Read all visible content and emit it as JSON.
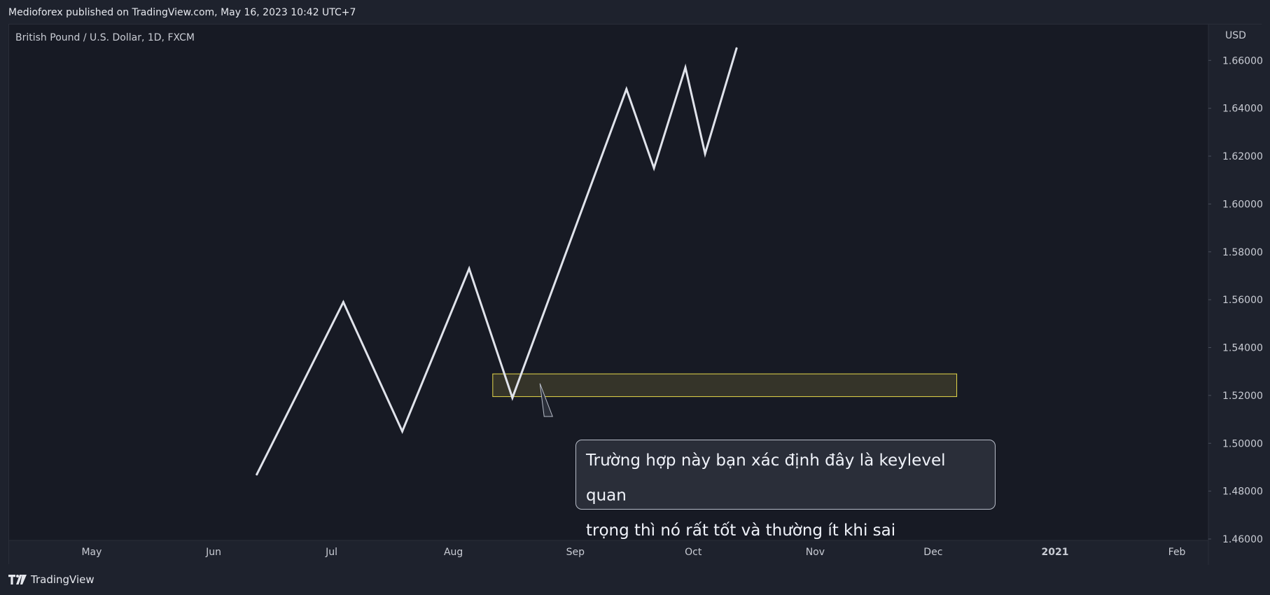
{
  "header": {
    "published_line": "Medioforex published on TradingView.com, May 16, 2023 10:42 UTC+7"
  },
  "footer": {
    "brand": "TradingView"
  },
  "chart_data": {
    "type": "line",
    "symbol_label": "British Pound / U.S. Dollar, 1D, FXCM",
    "currency_label": "USD",
    "y_ticks": [
      "1.66000",
      "1.64000",
      "1.62000",
      "1.60000",
      "1.58000",
      "1.56000",
      "1.54000",
      "1.52000",
      "1.50000",
      "1.48000",
      "1.46000"
    ],
    "ylim": [
      1.46,
      1.675
    ],
    "x_ticks": [
      {
        "label": "May",
        "date": "2020-05-01"
      },
      {
        "label": "Jun",
        "date": "2020-06-01"
      },
      {
        "label": "Jul",
        "date": "2020-07-01"
      },
      {
        "label": "Aug",
        "date": "2020-08-01"
      },
      {
        "label": "Sep",
        "date": "2020-09-01"
      },
      {
        "label": "Oct",
        "date": "2020-10-01"
      },
      {
        "label": "Nov",
        "date": "2020-11-01"
      },
      {
        "label": "Dec",
        "date": "2020-12-01"
      },
      {
        "label": "2021",
        "date": "2021-01-01",
        "bold": true
      },
      {
        "label": "Feb",
        "date": "2021-02-01"
      }
    ],
    "xlim": [
      "2020-04-10",
      "2021-02-09"
    ],
    "series": [
      {
        "color": "#e0e3eb",
        "points": [
          {
            "x": "2020-06-12",
            "y": 1.487
          },
          {
            "x": "2020-07-04",
            "y": 1.559
          },
          {
            "x": "2020-07-19",
            "y": 1.505
          },
          {
            "x": "2020-08-05",
            "y": 1.573
          },
          {
            "x": "2020-08-16",
            "y": 1.519
          },
          {
            "x": "2020-09-14",
            "y": 1.648
          },
          {
            "x": "2020-09-21",
            "y": 1.615
          },
          {
            "x": "2020-09-29",
            "y": 1.657
          },
          {
            "x": "2020-10-04",
            "y": 1.621
          },
          {
            "x": "2020-10-12",
            "y": 1.665
          }
        ]
      }
    ],
    "zone": {
      "x_start": "2020-08-11",
      "x_end": "2020-12-07",
      "y_low": 1.5195,
      "y_high": 1.529,
      "fill": "#3b3a2a",
      "stroke": "#e6d84a"
    },
    "annotation": {
      "line1": "Trường hợp này bạn xác định đây là keylevel quan",
      "line2": "trọng thì nó rất tốt và thường ít khi sai",
      "pointer": {
        "x": "2020-08-23",
        "y": 1.525
      }
    }
  }
}
